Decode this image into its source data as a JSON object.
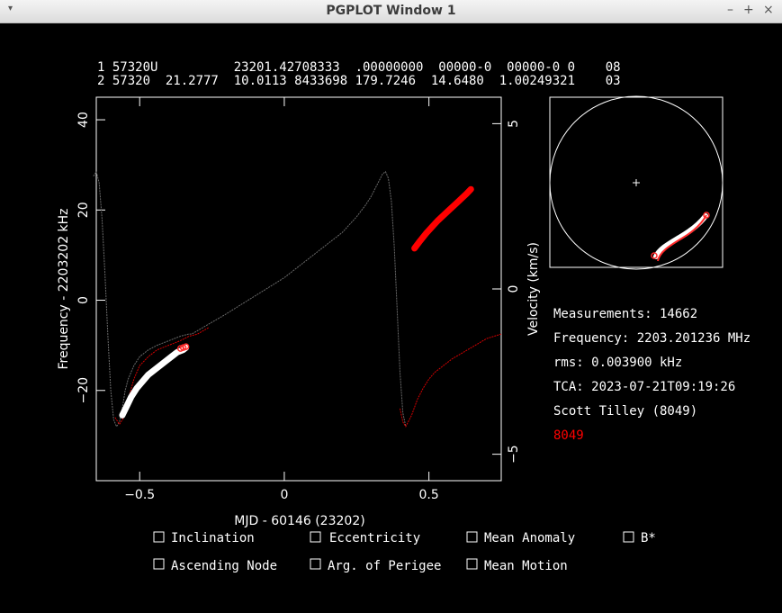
{
  "window": {
    "title": "PGPLOT Window 1",
    "menu_icon": "▾",
    "minimize_icon": "–",
    "maximize_icon": "+",
    "close_icon": "×"
  },
  "tle": {
    "line1": "1 57320U          23201.42708333  .00000000  00000-0  00000-0 0    08",
    "line2": "2 57320  21.2777  10.0113 8433698 179.7246  14.6480  1.00249321    03"
  },
  "chart_data": {
    "type": "line",
    "xlabel": "MJD - 60146 (23202)",
    "ylabel": "Frequency - 2203202 kHz",
    "y2label": "Velocity (km/s)",
    "xlim": [
      -0.65,
      0.75
    ],
    "ylim": [
      -40,
      45
    ],
    "y2lim": [
      -5.8,
      5.8
    ],
    "xticks": [
      {
        "v": -0.5,
        "label": "−0.5"
      },
      {
        "v": 0,
        "label": "0"
      },
      {
        "v": 0.5,
        "label": "0.5"
      }
    ],
    "yticks": [
      {
        "v": 40,
        "label": "40"
      },
      {
        "v": 20,
        "label": "20"
      },
      {
        "v": 0,
        "label": "0"
      },
      {
        "v": -20,
        "label": "−20"
      }
    ],
    "y2ticks": [
      {
        "v": 5,
        "label": "5"
      },
      {
        "v": 0,
        "label": "0"
      },
      {
        "v": -5,
        "label": "−5"
      }
    ],
    "series": [
      {
        "color": "#6a6a6a",
        "style": "model",
        "x": [
          -0.66,
          -0.65,
          -0.64,
          -0.63,
          -0.62,
          -0.61,
          -0.6,
          -0.59,
          -0.58,
          -0.57,
          -0.56,
          -0.55,
          -0.54,
          -0.52,
          -0.5,
          -0.47,
          -0.44,
          -0.4,
          -0.36,
          -0.33,
          -0.32,
          -0.28,
          -0.24,
          -0.2,
          -0.15,
          -0.1,
          -0.05,
          0.0,
          0.05,
          0.1,
          0.15,
          0.2,
          0.25,
          0.28,
          0.3,
          0.32,
          0.34,
          0.35,
          0.36,
          0.37,
          0.38,
          0.39,
          0.4,
          0.41,
          0.42
        ],
        "y": [
          27.5,
          28.5,
          26,
          18,
          6,
          -8,
          -20,
          -26.5,
          -28,
          -27,
          -24,
          -20,
          -17.5,
          -14.5,
          -12.5,
          -11,
          -10,
          -9,
          -8,
          -7.5,
          -7.5,
          -6,
          -4.5,
          -3,
          -1,
          1,
          3,
          5,
          7.5,
          10,
          12.5,
          15,
          18.5,
          21,
          23,
          25.5,
          28,
          28.5,
          27,
          22,
          12,
          -2,
          -16,
          -25,
          -28
        ]
      },
      {
        "color": "#d40000",
        "style": "model",
        "x": [
          -0.585,
          -0.57,
          -0.555,
          -0.54,
          -0.52,
          -0.5,
          -0.47,
          -0.44,
          -0.4,
          -0.36,
          -0.33,
          -0.3,
          -0.26
        ],
        "y": [
          -26,
          -27.5,
          -26,
          -22,
          -17.5,
          -14.5,
          -12.5,
          -11,
          -10,
          -9,
          -8,
          -7.5,
          -6
        ]
      },
      {
        "color": "#d40000",
        "style": "model",
        "x": [
          0.4,
          0.41,
          0.42,
          0.44,
          0.46,
          0.48,
          0.5,
          0.52,
          0.55,
          0.58,
          0.62,
          0.66,
          0.7,
          0.75
        ],
        "y": [
          -24,
          -27,
          -28,
          -25.5,
          -22,
          -19.5,
          -17.5,
          -16,
          -14.5,
          -13,
          -11.5,
          -10,
          -8.5,
          -7.5
        ]
      },
      {
        "color": "#ffffff",
        "style": "obs",
        "x": [
          -0.56,
          -0.545,
          -0.53,
          -0.51,
          -0.49,
          -0.47,
          -0.45,
          -0.43,
          -0.41,
          -0.39,
          -0.37,
          -0.35,
          -0.34
        ],
        "y": [
          -25.5,
          -23.5,
          -21.5,
          -19.5,
          -18,
          -16.5,
          -15.5,
          -14.5,
          -13.5,
          -12.5,
          -11.5,
          -11,
          -10.5
        ]
      },
      {
        "color": "#ff0000",
        "style": "obs",
        "x": [
          0.45,
          0.47,
          0.49,
          0.51,
          0.53,
          0.55,
          0.57,
          0.59,
          0.61,
          0.63,
          0.645
        ],
        "y": [
          11.5,
          13.2,
          14.8,
          16.2,
          17.6,
          18.8,
          20.0,
          21.2,
          22.4,
          23.6,
          24.6
        ]
      }
    ]
  },
  "polar": {
    "curve_color": "#ff2a2a"
  },
  "info": {
    "measurements": "Measurements: 14662",
    "frequency": "Frequency: 2203.201236 MHz",
    "rms": "rms: 0.003900 kHz",
    "tca": "TCA: 2023-07-21T09:19:26",
    "observer": "Scott Tilley (8049)",
    "station": "8049",
    "station_color": "#ff0000"
  },
  "checkboxes": [
    {
      "label": "Inclination",
      "checked": false
    },
    {
      "label": "Eccentricity",
      "checked": false
    },
    {
      "label": "Mean Anomaly",
      "checked": false
    },
    {
      "label": "B*",
      "checked": false
    },
    {
      "label": "Ascending Node",
      "checked": false
    },
    {
      "label": "Arg. of Perigee",
      "checked": false
    },
    {
      "label": "Mean Motion",
      "checked": false
    }
  ]
}
